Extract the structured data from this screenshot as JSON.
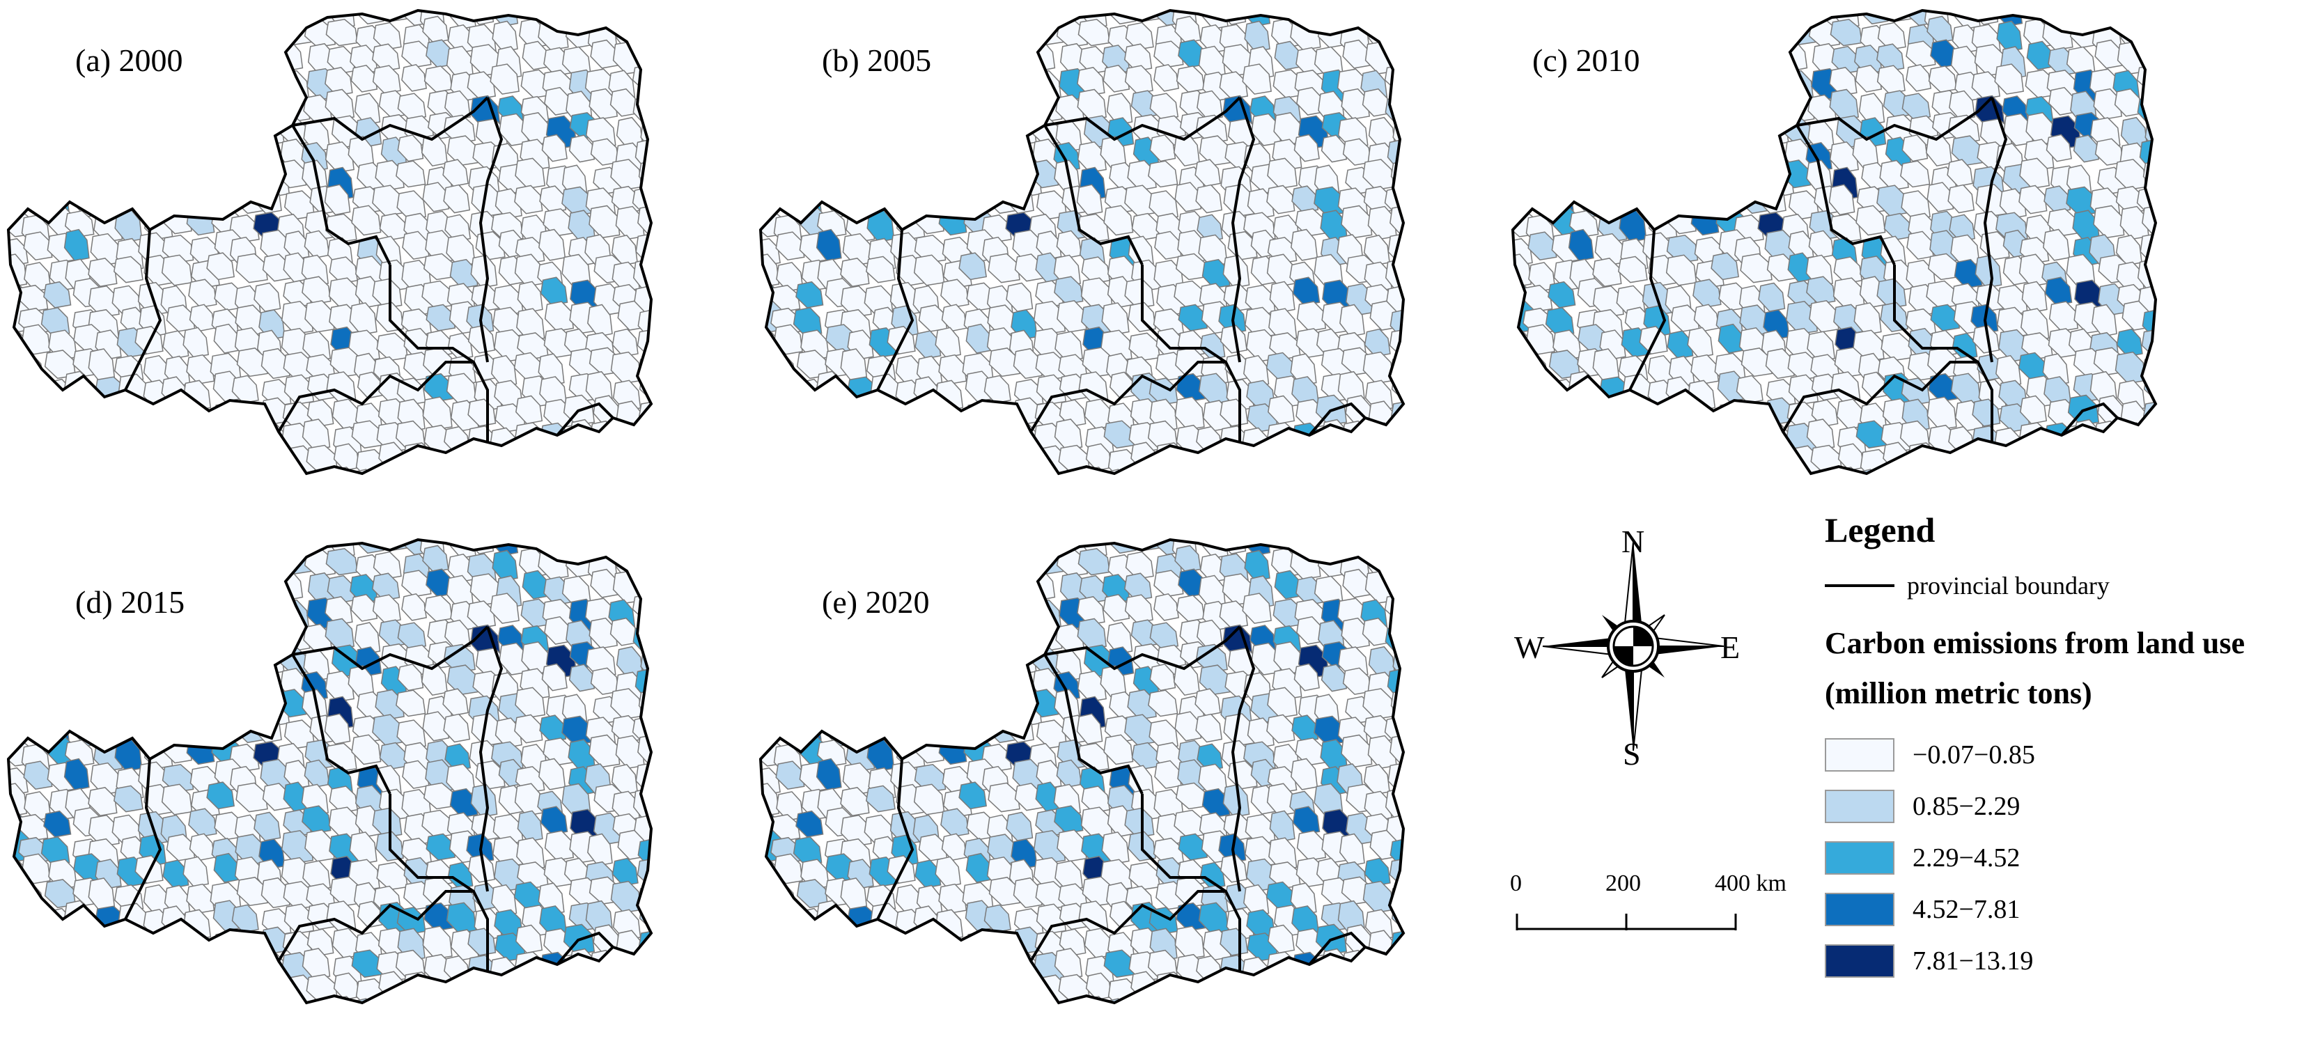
{
  "panels": [
    {
      "label": "(a) 2000"
    },
    {
      "label": "(b) 2005"
    },
    {
      "label": "(c) 2010"
    },
    {
      "label": "(d) 2015"
    },
    {
      "label": "(e) 2020"
    }
  ],
  "legend": {
    "title": "Legend",
    "boundary_label": "provincial boundary",
    "emissions_title_line1": "Carbon emissions from land use",
    "emissions_title_line2": "(million metric tons)",
    "classes": [
      {
        "label": "−0.07−0.85",
        "color": "#f5f9ff"
      },
      {
        "label": "0.85−2.29",
        "color": "#bcd9f0"
      },
      {
        "label": "2.29−4.52",
        "color": "#35aadb"
      },
      {
        "label": "4.52−7.81",
        "color": "#0d6fbe"
      },
      {
        "label": "7.81−13.19",
        "color": "#062b74"
      }
    ]
  },
  "compass": {
    "north": "N",
    "south": "S",
    "east": "E",
    "west": "W"
  },
  "scalebar": {
    "labels": [
      "0",
      "200",
      "400 km"
    ]
  }
}
